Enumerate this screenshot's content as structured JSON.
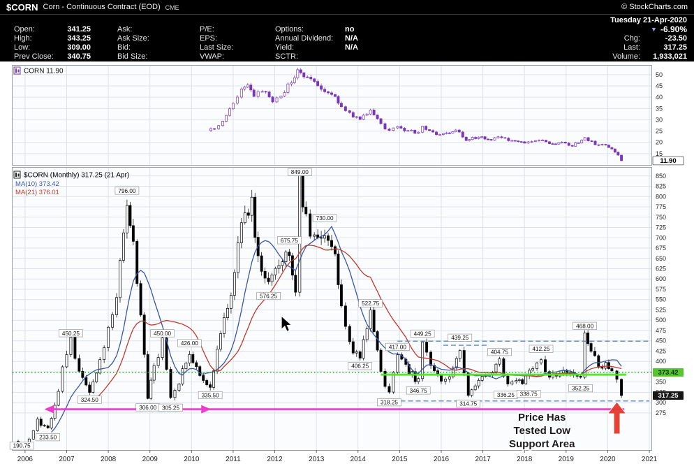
{
  "header": {
    "symbol": "$CORN",
    "description": "Corn - Continuous Contract (EOD)",
    "exchange": "CME",
    "copyright": "© StockCharts.com",
    "date": "Tuesday 21-Apr-2020"
  },
  "quote": {
    "col1": [
      {
        "label": "Open:",
        "value": "341.25"
      },
      {
        "label": "High:",
        "value": "343.25"
      },
      {
        "label": "Low:",
        "value": "309.00"
      },
      {
        "label": "Prev Close:",
        "value": "340.75"
      }
    ],
    "col2": [
      {
        "label": "Ask:",
        "value": ""
      },
      {
        "label": "Ask Size:",
        "value": ""
      },
      {
        "label": "Bid:",
        "value": ""
      },
      {
        "label": "Bid Size:",
        "value": ""
      }
    ],
    "col3": [
      {
        "label": "P/E:",
        "value": ""
      },
      {
        "label": "EPS:",
        "value": ""
      },
      {
        "label": "Last Size:",
        "value": ""
      },
      {
        "label": "VWAP:",
        "value": ""
      }
    ],
    "col4": [
      {
        "label": "Options:",
        "value": "no"
      },
      {
        "label": "Annual Dividend:",
        "value": "N/A"
      },
      {
        "label": "Yield:",
        "value": "N/A"
      },
      {
        "label": "SCTR:",
        "value": ""
      }
    ],
    "summary": {
      "direction": "▼",
      "percent": "-6.90%",
      "chg_label": "Chg:",
      "chg": "-23.50",
      "last_label": "Last:",
      "last": "317.25",
      "volume_label": "Volume:",
      "volume": "1,933,021"
    }
  },
  "chart_data": [
    {
      "type": "candlestick",
      "panel": "upper",
      "legend": "CORN 11.90",
      "symbol": "CORN",
      "last": 11.9,
      "badge": "11.90",
      "color": "#7a35b8",
      "ylim": [
        10,
        54
      ],
      "yticks": [
        15,
        20,
        25,
        30,
        35,
        40,
        45,
        50
      ],
      "keypoints": [
        [
          2010.38,
          25.2
        ],
        [
          2010.55,
          26.2
        ],
        [
          2010.75,
          30
        ],
        [
          2011.0,
          38
        ],
        [
          2011.2,
          43
        ],
        [
          2011.35,
          44.5
        ],
        [
          2011.5,
          40.5
        ],
        [
          2011.7,
          43
        ],
        [
          2011.95,
          38.5
        ],
        [
          2012.15,
          40.5
        ],
        [
          2012.4,
          47
        ],
        [
          2012.55,
          52.3
        ],
        [
          2012.7,
          49.5
        ],
        [
          2012.95,
          46
        ],
        [
          2013.2,
          43.5
        ],
        [
          2013.45,
          40
        ],
        [
          2013.6,
          36.5
        ],
        [
          2013.8,
          32.5
        ],
        [
          2014.05,
          30.5
        ],
        [
          2014.3,
          33.8
        ],
        [
          2014.55,
          28
        ],
        [
          2014.75,
          25
        ],
        [
          2014.95,
          26.8
        ],
        [
          2015.2,
          25.2
        ],
        [
          2015.45,
          24
        ],
        [
          2015.55,
          27
        ],
        [
          2015.8,
          24
        ],
        [
          2016.05,
          23.5
        ],
        [
          2016.35,
          25.5
        ],
        [
          2016.6,
          21.3
        ],
        [
          2016.9,
          22.2
        ],
        [
          2017.2,
          21.4
        ],
        [
          2017.45,
          22.4
        ],
        [
          2017.7,
          20.6
        ],
        [
          2018.0,
          20.0
        ],
        [
          2018.35,
          21.4
        ],
        [
          2018.6,
          19.4
        ],
        [
          2018.9,
          19.8
        ],
        [
          2019.15,
          18.6
        ],
        [
          2019.45,
          21.8
        ],
        [
          2019.7,
          19.2
        ],
        [
          2019.95,
          18.4
        ],
        [
          2020.1,
          17.2
        ],
        [
          2020.25,
          14.5
        ],
        [
          2020.33,
          11.9
        ]
      ]
    },
    {
      "type": "candlestick",
      "panel": "main",
      "legend": "$CORN (Monthly) 317.25 (21 Apr)",
      "last": 317.25,
      "last_badge": "317.25",
      "ma_badge": "373.42",
      "ma10": {
        "label": "MA(10) 373.42",
        "value": 373.42,
        "color": "#3a57a7"
      },
      "ma21": {
        "label": "MA(21) 376.01",
        "value": 376.01,
        "color": "#c0392b"
      },
      "ylim": [
        185,
        870
      ],
      "yticks": [
        275,
        300,
        325,
        350,
        375,
        400,
        425,
        450,
        475,
        500,
        525,
        550,
        575,
        600,
        625,
        650,
        675,
        700,
        725,
        750,
        775,
        800,
        825,
        850
      ],
      "x_ticks": [
        2006,
        2007,
        2008,
        2009,
        2010,
        2011,
        2012,
        2013,
        2014,
        2015,
        2016,
        2017,
        2018,
        2019,
        2020,
        2021
      ],
      "keypoints": [
        [
          2005.75,
          206
        ],
        [
          2005.92,
          193
        ],
        [
          2006.1,
          216
        ],
        [
          2006.3,
          258
        ],
        [
          2006.55,
          236
        ],
        [
          2006.8,
          330
        ],
        [
          2007.0,
          425
        ],
        [
          2007.1,
          448
        ],
        [
          2007.3,
          378
        ],
        [
          2007.55,
          327
        ],
        [
          2007.8,
          395
        ],
        [
          2008.0,
          475
        ],
        [
          2008.2,
          565
        ],
        [
          2008.45,
          792
        ],
        [
          2008.6,
          696
        ],
        [
          2008.78,
          505
        ],
        [
          2008.95,
          310
        ],
        [
          2009.1,
          382
        ],
        [
          2009.3,
          446
        ],
        [
          2009.5,
          309
        ],
        [
          2009.7,
          352
        ],
        [
          2009.95,
          422
        ],
        [
          2010.2,
          368
        ],
        [
          2010.45,
          338
        ],
        [
          2010.7,
          465
        ],
        [
          2010.95,
          565
        ],
        [
          2011.2,
          725
        ],
        [
          2011.45,
          788
        ],
        [
          2011.6,
          645
        ],
        [
          2011.85,
          580
        ],
        [
          2012.1,
          642
        ],
        [
          2012.35,
          672
        ],
        [
          2012.5,
          556
        ],
        [
          2012.6,
          843
        ],
        [
          2012.75,
          745
        ],
        [
          2012.95,
          692
        ],
        [
          2013.2,
          722
        ],
        [
          2013.45,
          655
        ],
        [
          2013.6,
          545
        ],
        [
          2013.8,
          438
        ],
        [
          2014.05,
          412
        ],
        [
          2014.3,
          516
        ],
        [
          2014.55,
          372
        ],
        [
          2014.75,
          322
        ],
        [
          2014.95,
          412
        ],
        [
          2015.15,
          386
        ],
        [
          2015.45,
          351
        ],
        [
          2015.55,
          444
        ],
        [
          2015.75,
          382
        ],
        [
          2016.0,
          361
        ],
        [
          2016.2,
          368
        ],
        [
          2016.45,
          434
        ],
        [
          2016.65,
          319
        ],
        [
          2016.9,
          352
        ],
        [
          2017.15,
          362
        ],
        [
          2017.4,
          400
        ],
        [
          2017.6,
          341
        ],
        [
          2017.8,
          352
        ],
        [
          2017.95,
          343
        ],
        [
          2018.2,
          388
        ],
        [
          2018.4,
          407
        ],
        [
          2018.6,
          361
        ],
        [
          2018.85,
          372
        ],
        [
          2019.1,
          367
        ],
        [
          2019.35,
          356
        ],
        [
          2019.45,
          463
        ],
        [
          2019.6,
          428
        ],
        [
          2019.78,
          386
        ],
        [
          2019.95,
          389
        ],
        [
          2020.1,
          380
        ],
        [
          2020.22,
          362
        ],
        [
          2020.33,
          317.25
        ]
      ],
      "annotations": [
        {
          "t": 2005.92,
          "price": 190.75,
          "pos": "below",
          "label": "190.75"
        },
        {
          "t": 2006.55,
          "price": 233.5,
          "pos": "below",
          "label": "233.50"
        },
        {
          "t": 2007.1,
          "price": 450.25,
          "pos": "above",
          "label": "450.25"
        },
        {
          "t": 2007.55,
          "price": 324.5,
          "pos": "below",
          "label": "324.50"
        },
        {
          "t": 2008.45,
          "price": 796.0,
          "pos": "above",
          "label": "796.00"
        },
        {
          "t": 2008.95,
          "price": 306.0,
          "pos": "below",
          "label": "306.00"
        },
        {
          "t": 2009.3,
          "price": 450.0,
          "pos": "above",
          "label": "450.00"
        },
        {
          "t": 2009.5,
          "price": 305.25,
          "pos": "below",
          "label": "305.25"
        },
        {
          "t": 2009.95,
          "price": 426.0,
          "pos": "above",
          "label": "426.00"
        },
        {
          "t": 2010.45,
          "price": 335.5,
          "pos": "below",
          "label": "335.50"
        },
        {
          "t": 2011.85,
          "price": 576.25,
          "pos": "below",
          "label": "576.25"
        },
        {
          "t": 2012.35,
          "price": 675.75,
          "pos": "above",
          "label": "675.75"
        },
        {
          "t": 2012.6,
          "price": 849.0,
          "pos": "above",
          "label": "849.00"
        },
        {
          "t": 2013.2,
          "price": 730.0,
          "pos": "above",
          "label": "730.00"
        },
        {
          "t": 2014.05,
          "price": 406.25,
          "pos": "below",
          "label": "406.25"
        },
        {
          "t": 2014.3,
          "price": 522.75,
          "pos": "above",
          "label": "522.75"
        },
        {
          "t": 2014.75,
          "price": 318.25,
          "pos": "below",
          "label": "318.25"
        },
        {
          "t": 2014.95,
          "price": 417.0,
          "pos": "above",
          "label": "417.00"
        },
        {
          "t": 2015.45,
          "price": 346.75,
          "pos": "below",
          "label": "346.75"
        },
        {
          "t": 2015.55,
          "price": 449.25,
          "pos": "above",
          "label": "449.25"
        },
        {
          "t": 2016.45,
          "price": 439.25,
          "pos": "above",
          "label": "439.25"
        },
        {
          "t": 2016.65,
          "price": 314.75,
          "pos": "below",
          "label": "314.75"
        },
        {
          "t": 2017.4,
          "price": 404.75,
          "pos": "above",
          "label": "404.75"
        },
        {
          "t": 2017.55,
          "price": 336.25,
          "pos": "below",
          "label": "336.25"
        },
        {
          "t": 2018.1,
          "price": 338.75,
          "pos": "below",
          "label": "338.75"
        },
        {
          "t": 2018.4,
          "price": 412.25,
          "pos": "above",
          "label": "412.25"
        },
        {
          "t": 2019.35,
          "price": 352.25,
          "pos": "below",
          "label": "352.25"
        },
        {
          "t": 2019.45,
          "price": 468.0,
          "pos": "above",
          "label": "468.00"
        }
      ],
      "overlays": {
        "dotted_green": {
          "price": 373.42,
          "color": "#1fae1f"
        },
        "solid_lime": {
          "price": 368,
          "t1": 2014.55,
          "t2": 2020.45,
          "color": "#52e42b"
        },
        "dashed_blue": [
          {
            "price": 449.25,
            "t1": 2014.95,
            "t2": 2021.0
          },
          {
            "price": 439.25,
            "t1": 2016.05,
            "t2": 2017.1
          },
          {
            "price": 304.0,
            "t1": 2014.65,
            "t2": 2021.0
          }
        ],
        "magenta_arrow": {
          "price": 284,
          "t1": 2006.68,
          "t2": 2020.4,
          "mid_arrow_t": 2010.25,
          "color": "#e93ecb"
        },
        "red_arrow": {
          "t": 2020.22,
          "tip_price": 302,
          "tail_price": 224,
          "color": "#e23b2e"
        },
        "note": {
          "lines": [
            "Price Has",
            "Tested Low",
            "Support Area"
          ],
          "t": 2018.42,
          "price": 224
        }
      }
    }
  ]
}
